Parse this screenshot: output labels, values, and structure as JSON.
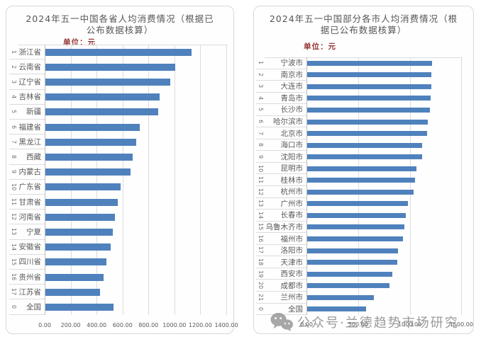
{
  "page": {
    "background": "#ffffff"
  },
  "watermark": {
    "icon": "wechat-icon",
    "text": "公众号·兰德趋势市场研究",
    "color": "#828282"
  },
  "chart_data": [
    {
      "type": "bar",
      "orientation": "horizontal",
      "title": "2024年五一中国各省人均消费情况（根据已公布数据核算）",
      "title_lines": [
        "2024年五一中国各省人均消费情况（根据已",
        "公布数据核算）"
      ],
      "unit_label": "单位：元",
      "xlabel": "",
      "ylabel": "",
      "ranks": [
        "1",
        "2",
        "3",
        "4",
        "5",
        "6",
        "7",
        "8",
        "9",
        "10",
        "11",
        "12",
        "13",
        "14",
        "15",
        "16",
        "17",
        "0"
      ],
      "categories": [
        "浙江省",
        "云南省",
        "辽宁省",
        "吉林省",
        "新疆",
        "福建省",
        "黑龙江",
        "西藏",
        "内蒙古",
        "广东省",
        "甘肃省",
        "河南省",
        "宁夏",
        "安徽省",
        "四川省",
        "贵州省",
        "江苏省",
        "全国"
      ],
      "values": [
        1125,
        1000,
        965,
        880,
        870,
        730,
        700,
        670,
        655,
        580,
        560,
        535,
        520,
        505,
        470,
        450,
        420,
        525
      ],
      "xlim": [
        0,
        1400
      ],
      "xticks": [
        0,
        200,
        400,
        600,
        800,
        1000,
        1200,
        1400
      ],
      "xtick_labels": [
        "0.00",
        "200.00",
        "400.00",
        "600.00",
        "800.00",
        "1000.00",
        "1200.00",
        "1400.00"
      ],
      "bar_color": "#4f81bd",
      "grid": true,
      "legend": "none"
    },
    {
      "type": "bar",
      "orientation": "horizontal",
      "title": "2024年五一中国部分各市人均消费情况（根据已公布数据核算）",
      "title_lines": [
        "2024年五一中国部分各市人均消费情况（根",
        "据已公布数据核算）"
      ],
      "unit_label": "单位：元",
      "xlabel": "",
      "ylabel": "",
      "ranks": [
        "1",
        "2",
        "3",
        "4",
        "5",
        "6",
        "7",
        "8",
        "9",
        "10",
        "11",
        "12",
        "13",
        "14",
        "15",
        "16",
        "17",
        "18",
        "19",
        "20",
        "21",
        "0"
      ],
      "categories": [
        "宁波市",
        "南京市",
        "大连市",
        "青岛市",
        "长沙市",
        "哈尔滨市",
        "北京市",
        "海口市",
        "沈阳市",
        "昆明市",
        "桂林市",
        "杭州市",
        "广州市",
        "长春市",
        "乌鲁木齐市",
        "福州市",
        "洛阳市",
        "天津市",
        "西安市",
        "成都市",
        "兰州市",
        "全国"
      ],
      "values": [
        1210,
        1205,
        1200,
        1195,
        1185,
        1170,
        1160,
        1115,
        1110,
        1060,
        1045,
        1030,
        975,
        955,
        940,
        930,
        880,
        870,
        825,
        800,
        645,
        570
      ],
      "xlim": [
        0,
        1500
      ],
      "xticks": [
        0,
        500,
        1000,
        1500
      ],
      "xtick_labels": [
        "0.00",
        "500.00",
        "1000.00",
        "1500.00"
      ],
      "bar_color": "#4f81bd",
      "grid": true,
      "legend": "none"
    }
  ]
}
